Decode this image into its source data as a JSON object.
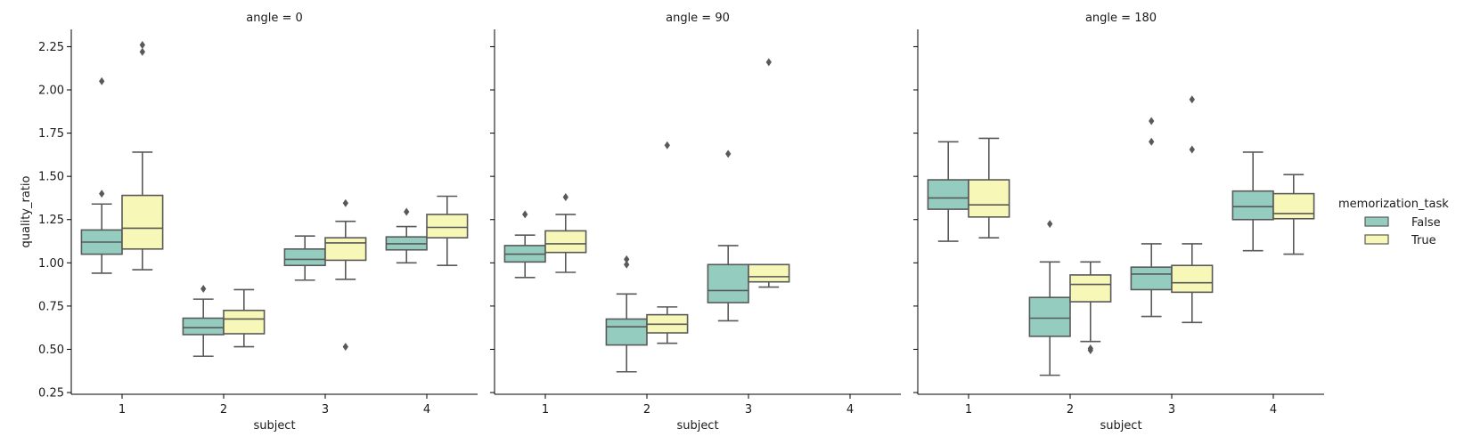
{
  "chart_data": {
    "type": "box",
    "facet_label_prefix": "angle = ",
    "xlabel": "subject",
    "ylabel": "quality_ratio",
    "ylim": [
      0.24,
      2.35
    ],
    "yticks": [
      0.25,
      0.5,
      0.75,
      1.0,
      1.25,
      1.5,
      1.75,
      2.0,
      2.25
    ],
    "ytick_labels": [
      "0.25",
      "0.50",
      "0.75",
      "1.00",
      "1.25",
      "1.50",
      "1.75",
      "2.00",
      "2.25"
    ],
    "categories": [
      "1",
      "2",
      "3",
      "4"
    ],
    "legend": {
      "title": "memorization_task",
      "position": "right",
      "entries": [
        {
          "label": "False",
          "color": "#94cdbf"
        },
        {
          "label": "True",
          "color": "#f7f7b8"
        }
      ]
    },
    "colors": {
      "box_edge": "#595959",
      "outlier": "#595959"
    },
    "facets": [
      {
        "angle": "0",
        "boxes": [
          {
            "subject": "1",
            "group": "False",
            "whislo": 0.94,
            "q1": 1.05,
            "med": 1.12,
            "q3": 1.19,
            "whishi": 1.34,
            "fliers": [
              1.4,
              2.05
            ]
          },
          {
            "subject": "1",
            "group": "True",
            "whislo": 0.96,
            "q1": 1.08,
            "med": 1.2,
            "q3": 1.39,
            "whishi": 1.64,
            "fliers": [
              2.22,
              2.26
            ]
          },
          {
            "subject": "2",
            "group": "False",
            "whislo": 0.46,
            "q1": 0.585,
            "med": 0.625,
            "q3": 0.68,
            "whishi": 0.79,
            "fliers": [
              0.85
            ]
          },
          {
            "subject": "2",
            "group": "True",
            "whislo": 0.515,
            "q1": 0.59,
            "med": 0.675,
            "q3": 0.725,
            "whishi": 0.845,
            "fliers": []
          },
          {
            "subject": "3",
            "group": "False",
            "whislo": 0.9,
            "q1": 0.985,
            "med": 1.02,
            "q3": 1.08,
            "whishi": 1.155,
            "fliers": []
          },
          {
            "subject": "3",
            "group": "True",
            "whislo": 0.905,
            "q1": 1.015,
            "med": 1.115,
            "q3": 1.145,
            "whishi": 1.24,
            "fliers": [
              1.345,
              0.515
            ]
          },
          {
            "subject": "4",
            "group": "False",
            "whislo": 1.0,
            "q1": 1.075,
            "med": 1.11,
            "q3": 1.15,
            "whishi": 1.21,
            "fliers": [
              1.295
            ]
          },
          {
            "subject": "4",
            "group": "True",
            "whislo": 0.985,
            "q1": 1.145,
            "med": 1.205,
            "q3": 1.28,
            "whishi": 1.385,
            "fliers": []
          }
        ]
      },
      {
        "angle": "90",
        "boxes": [
          {
            "subject": "1",
            "group": "False",
            "whislo": 0.915,
            "q1": 1.005,
            "med": 1.05,
            "q3": 1.1,
            "whishi": 1.16,
            "fliers": [
              1.28
            ]
          },
          {
            "subject": "1",
            "group": "True",
            "whislo": 0.945,
            "q1": 1.06,
            "med": 1.11,
            "q3": 1.185,
            "whishi": 1.28,
            "fliers": [
              1.38
            ]
          },
          {
            "subject": "2",
            "group": "False",
            "whislo": 0.37,
            "q1": 0.525,
            "med": 0.63,
            "q3": 0.675,
            "whishi": 0.82,
            "fliers": [
              0.99,
              1.02
            ]
          },
          {
            "subject": "2",
            "group": "True",
            "whislo": 0.535,
            "q1": 0.595,
            "med": 0.645,
            "q3": 0.7,
            "whishi": 0.745,
            "fliers": [
              1.68
            ]
          },
          {
            "subject": "3",
            "group": "False",
            "whislo": 0.665,
            "q1": 0.77,
            "med": 0.84,
            "q3": 0.99,
            "whishi": 1.1,
            "fliers": [
              1.63
            ]
          },
          {
            "subject": "3",
            "group": "True",
            "whislo": 0.86,
            "q1": 0.89,
            "med": 0.92,
            "q3": 0.99,
            "whishi": 0.99,
            "fliers": [
              2.16
            ]
          }
        ]
      },
      {
        "angle": "180",
        "boxes": [
          {
            "subject": "1",
            "group": "False",
            "whislo": 1.125,
            "q1": 1.31,
            "med": 1.375,
            "q3": 1.48,
            "whishi": 1.7,
            "fliers": []
          },
          {
            "subject": "1",
            "group": "True",
            "whislo": 1.145,
            "q1": 1.265,
            "med": 1.335,
            "q3": 1.48,
            "whishi": 1.72,
            "fliers": []
          },
          {
            "subject": "2",
            "group": "False",
            "whislo": 0.35,
            "q1": 0.575,
            "med": 0.68,
            "q3": 0.8,
            "whishi": 1.005,
            "fliers": [
              1.225
            ]
          },
          {
            "subject": "2",
            "group": "True",
            "whislo": 0.545,
            "q1": 0.775,
            "med": 0.875,
            "q3": 0.93,
            "whishi": 1.005,
            "fliers": [
              0.495,
              0.505
            ]
          },
          {
            "subject": "3",
            "group": "False",
            "whislo": 0.69,
            "q1": 0.845,
            "med": 0.935,
            "q3": 0.975,
            "whishi": 1.11,
            "fliers": [
              1.7,
              1.82
            ]
          },
          {
            "subject": "3",
            "group": "True",
            "whislo": 0.655,
            "q1": 0.83,
            "med": 0.885,
            "q3": 0.985,
            "whishi": 1.11,
            "fliers": [
              1.655,
              1.945
            ]
          },
          {
            "subject": "4",
            "group": "False",
            "whislo": 1.07,
            "q1": 1.25,
            "med": 1.325,
            "q3": 1.415,
            "whishi": 1.64,
            "fliers": []
          },
          {
            "subject": "4",
            "group": "True",
            "whislo": 1.05,
            "q1": 1.255,
            "med": 1.285,
            "q3": 1.4,
            "whishi": 1.51,
            "fliers": []
          }
        ]
      }
    ]
  }
}
